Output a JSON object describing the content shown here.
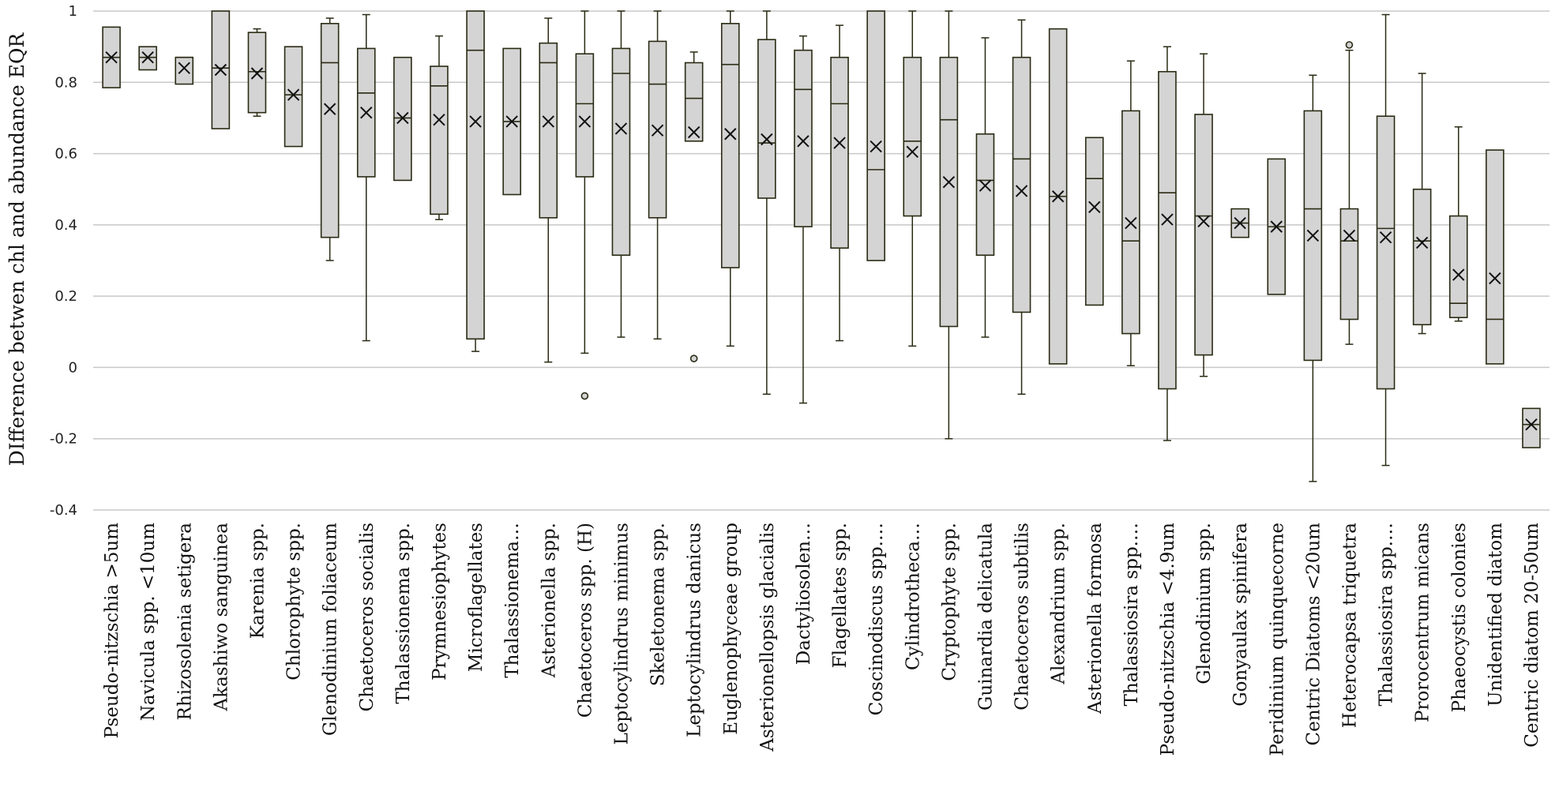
{
  "chart_data": {
    "type": "boxplot",
    "title": "",
    "ylabel": "DIfference betwen chl and abundance EQR",
    "xlabel": "",
    "ylim": [
      -0.4,
      1
    ],
    "yticks": [
      -0.4,
      -0.2,
      0,
      0.2,
      0.4,
      0.6,
      0.8,
      1
    ],
    "ytick_labels": [
      "-0.4",
      "-0.2",
      "0",
      "0.2",
      "0.4",
      "0.6",
      "0.8",
      "1"
    ],
    "grid": true,
    "categories": [
      "Pseudo-nitzschia >5um",
      "Navicula spp. <10um",
      "Rhizosolenia setigera",
      "Akashiwo sanguinea",
      "Karenia spp.",
      "Chlorophyte spp.",
      "Glenodinium foliaceum",
      "Chaetoceros socialis",
      "Thalassionema spp.",
      "Prymnesiophytes",
      "Microflagellates",
      "Thalassionema…",
      "Asterionella spp.",
      "Chaetoceros spp. (H)",
      "Leptocylindrus minimus",
      "Skeletonema spp.",
      "Leptocylindrus danicus",
      "Euglenophyceae group",
      "Asterionellopsis glacialis",
      "Dactyliosolen…",
      "Flagellates spp.",
      "Coscinodiscus spp.…",
      "Cylindrotheca…",
      "Cryptophyte spp.",
      "Guinardia delicatula",
      "Chaetoceros subtilis",
      "Alexandrium spp.",
      "Asterionella formosa",
      "Thalassiosira spp.…",
      "Pseudo-nitzschia <4.9um",
      "Glenodinium spp.",
      "Gonyaulax spinifera",
      "Peridinium quinquecorne",
      "Centric Diatoms <20um",
      "Heterocapsa triquetra",
      "Thalassiosira spp.…",
      "Prorocentrum micans",
      "Phaeocystis colonies",
      "Unidentified diatom",
      "Centric diatom 20-50um"
    ],
    "boxes": [
      {
        "min": 0.785,
        "q1": 0.785,
        "median": 0.87,
        "q3": 0.955,
        "max": 0.955,
        "mean": 0.87,
        "outliers": []
      },
      {
        "min": 0.835,
        "q1": 0.835,
        "median": 0.87,
        "q3": 0.9,
        "max": 0.9,
        "mean": 0.87,
        "outliers": []
      },
      {
        "min": 0.795,
        "q1": 0.795,
        "median": 0.87,
        "q3": 0.87,
        "max": 0.87,
        "mean": 0.84,
        "outliers": []
      },
      {
        "min": 0.67,
        "q1": 0.67,
        "median": 0.84,
        "q3": 1.0,
        "max": 1.0,
        "mean": 0.835,
        "outliers": []
      },
      {
        "min": 0.705,
        "q1": 0.715,
        "median": 0.83,
        "q3": 0.94,
        "max": 0.95,
        "mean": 0.825,
        "outliers": []
      },
      {
        "min": 0.62,
        "q1": 0.62,
        "median": 0.765,
        "q3": 0.9,
        "max": 0.9,
        "mean": 0.765,
        "outliers": []
      },
      {
        "min": 0.3,
        "q1": 0.365,
        "median": 0.855,
        "q3": 0.965,
        "max": 0.98,
        "mean": 0.725,
        "outliers": []
      },
      {
        "min": 0.075,
        "q1": 0.535,
        "median": 0.77,
        "q3": 0.895,
        "max": 0.99,
        "mean": 0.715,
        "outliers": []
      },
      {
        "min": 0.525,
        "q1": 0.525,
        "median": 0.7,
        "q3": 0.87,
        "max": 0.87,
        "mean": 0.7,
        "outliers": []
      },
      {
        "min": 0.415,
        "q1": 0.43,
        "median": 0.79,
        "q3": 0.845,
        "max": 0.93,
        "mean": 0.695,
        "outliers": []
      },
      {
        "min": 0.045,
        "q1": 0.08,
        "median": 0.89,
        "q3": 1.0,
        "max": 1.0,
        "mean": 0.69,
        "outliers": []
      },
      {
        "min": 0.485,
        "q1": 0.485,
        "median": 0.69,
        "q3": 0.895,
        "max": 0.895,
        "mean": 0.69,
        "outliers": []
      },
      {
        "min": 0.015,
        "q1": 0.42,
        "median": 0.855,
        "q3": 0.91,
        "max": 0.98,
        "mean": 0.69,
        "outliers": []
      },
      {
        "min": 0.04,
        "q1": 0.535,
        "median": 0.74,
        "q3": 0.88,
        "max": 1.0,
        "mean": 0.69,
        "outliers": [
          -0.08
        ]
      },
      {
        "min": 0.085,
        "q1": 0.315,
        "median": 0.825,
        "q3": 0.895,
        "max": 1.0,
        "mean": 0.67,
        "outliers": []
      },
      {
        "min": 0.08,
        "q1": 0.42,
        "median": 0.795,
        "q3": 0.915,
        "max": 1.0,
        "mean": 0.665,
        "outliers": []
      },
      {
        "min": 0.635,
        "q1": 0.635,
        "median": 0.755,
        "q3": 0.855,
        "max": 0.885,
        "mean": 0.66,
        "outliers": [
          0.025
        ]
      },
      {
        "min": 0.06,
        "q1": 0.28,
        "median": 0.85,
        "q3": 0.965,
        "max": 1.0,
        "mean": 0.655,
        "outliers": []
      },
      {
        "min": -0.075,
        "q1": 0.475,
        "median": 0.63,
        "q3": 0.92,
        "max": 1.0,
        "mean": 0.64,
        "outliers": []
      },
      {
        "min": -0.1,
        "q1": 0.395,
        "median": 0.78,
        "q3": 0.89,
        "max": 0.93,
        "mean": 0.635,
        "outliers": []
      },
      {
        "min": 0.075,
        "q1": 0.335,
        "median": 0.74,
        "q3": 0.87,
        "max": 0.96,
        "mean": 0.63,
        "outliers": []
      },
      {
        "min": 0.3,
        "q1": 0.3,
        "median": 0.555,
        "q3": 1.0,
        "max": 1.0,
        "mean": 0.62,
        "outliers": []
      },
      {
        "min": 0.06,
        "q1": 0.425,
        "median": 0.635,
        "q3": 0.87,
        "max": 1.0,
        "mean": 0.605,
        "outliers": []
      },
      {
        "min": -0.2,
        "q1": 0.115,
        "median": 0.695,
        "q3": 0.87,
        "max": 1.0,
        "mean": 0.52,
        "outliers": []
      },
      {
        "min": 0.085,
        "q1": 0.315,
        "median": 0.525,
        "q3": 0.655,
        "max": 0.925,
        "mean": 0.51,
        "outliers": []
      },
      {
        "min": -0.075,
        "q1": 0.155,
        "median": 0.585,
        "q3": 0.87,
        "max": 0.975,
        "mean": 0.495,
        "outliers": []
      },
      {
        "min": 0.01,
        "q1": 0.01,
        "median": 0.48,
        "q3": 0.95,
        "max": 0.95,
        "mean": 0.48,
        "outliers": []
      },
      {
        "min": 0.175,
        "q1": 0.175,
        "median": 0.53,
        "q3": 0.645,
        "max": 0.645,
        "mean": 0.45,
        "outliers": []
      },
      {
        "min": 0.005,
        "q1": 0.095,
        "median": 0.355,
        "q3": 0.72,
        "max": 0.86,
        "mean": 0.405,
        "outliers": []
      },
      {
        "min": -0.205,
        "q1": -0.06,
        "median": 0.49,
        "q3": 0.83,
        "max": 0.9,
        "mean": 0.415,
        "outliers": []
      },
      {
        "min": -0.025,
        "q1": 0.035,
        "median": 0.425,
        "q3": 0.71,
        "max": 0.88,
        "mean": 0.41,
        "outliers": []
      },
      {
        "min": 0.365,
        "q1": 0.365,
        "median": 0.405,
        "q3": 0.445,
        "max": 0.445,
        "mean": 0.405,
        "outliers": []
      },
      {
        "min": 0.205,
        "q1": 0.205,
        "median": 0.395,
        "q3": 0.585,
        "max": 0.585,
        "mean": 0.395,
        "outliers": []
      },
      {
        "min": -0.32,
        "q1": 0.02,
        "median": 0.445,
        "q3": 0.72,
        "max": 0.82,
        "mean": 0.37,
        "outliers": []
      },
      {
        "min": 0.065,
        "q1": 0.135,
        "median": 0.355,
        "q3": 0.445,
        "max": 0.89,
        "mean": 0.37,
        "outliers": [
          0.905
        ]
      },
      {
        "min": -0.275,
        "q1": -0.06,
        "median": 0.39,
        "q3": 0.705,
        "max": 0.99,
        "mean": 0.365,
        "outliers": []
      },
      {
        "min": 0.095,
        "q1": 0.12,
        "median": 0.355,
        "q3": 0.5,
        "max": 0.825,
        "mean": 0.35,
        "outliers": []
      },
      {
        "min": 0.13,
        "q1": 0.14,
        "median": 0.18,
        "q3": 0.425,
        "max": 0.675,
        "mean": 0.26,
        "outliers": []
      },
      {
        "min": 0.01,
        "q1": 0.01,
        "median": 0.135,
        "q3": 0.61,
        "max": 0.61,
        "mean": 0.25,
        "outliers": []
      },
      {
        "min": -0.225,
        "q1": -0.225,
        "median": -0.16,
        "q3": -0.115,
        "max": -0.115,
        "mean": -0.16,
        "outliers": []
      }
    ]
  }
}
